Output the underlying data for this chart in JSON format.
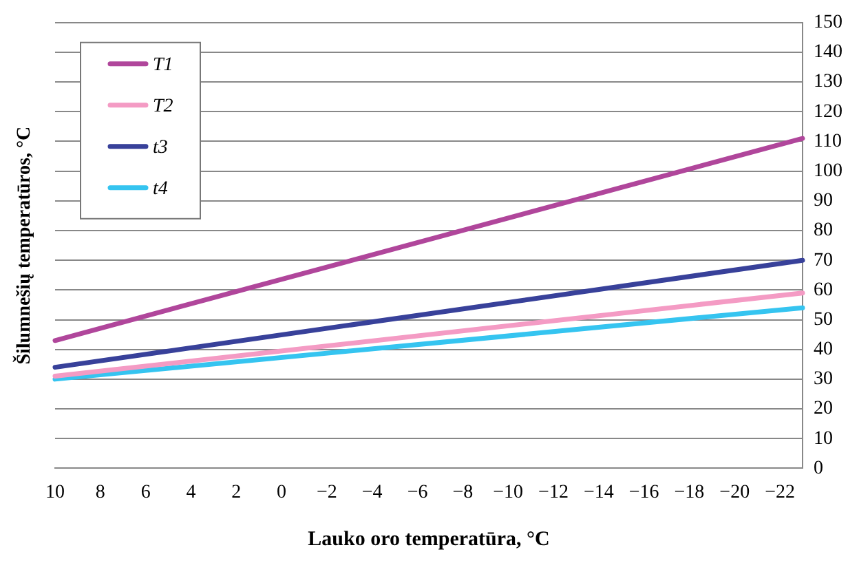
{
  "chart_data": {
    "type": "line",
    "xlabel": "Lauko oro temperatūra, °C",
    "ylabel": "Šilumnešių temperatūros, °C",
    "xlim": [
      10,
      -23
    ],
    "xticks": [
      10,
      8,
      6,
      4,
      2,
      0,
      -2,
      -4,
      -6,
      -8,
      -10,
      -12,
      -14,
      -16,
      -18,
      -20,
      -22
    ],
    "ylim": [
      0,
      150
    ],
    "yticks": [
      0,
      10,
      20,
      30,
      40,
      50,
      60,
      70,
      80,
      90,
      100,
      110,
      120,
      130,
      140,
      150
    ],
    "grid": "y",
    "legend": "top left",
    "marker": "none",
    "line_style": "solid",
    "x": [
      10,
      -23
    ],
    "series": [
      {
        "name": "T1",
        "color": "#b0469b",
        "values": [
          43,
          111
        ]
      },
      {
        "name": "T2",
        "color": "#f49bc4",
        "values": [
          31,
          59
        ]
      },
      {
        "name": "t3",
        "color": "#38419a",
        "values": [
          34,
          70
        ]
      },
      {
        "name": "t4",
        "color": "#35c4f0",
        "values": [
          30,
          54
        ]
      }
    ]
  }
}
